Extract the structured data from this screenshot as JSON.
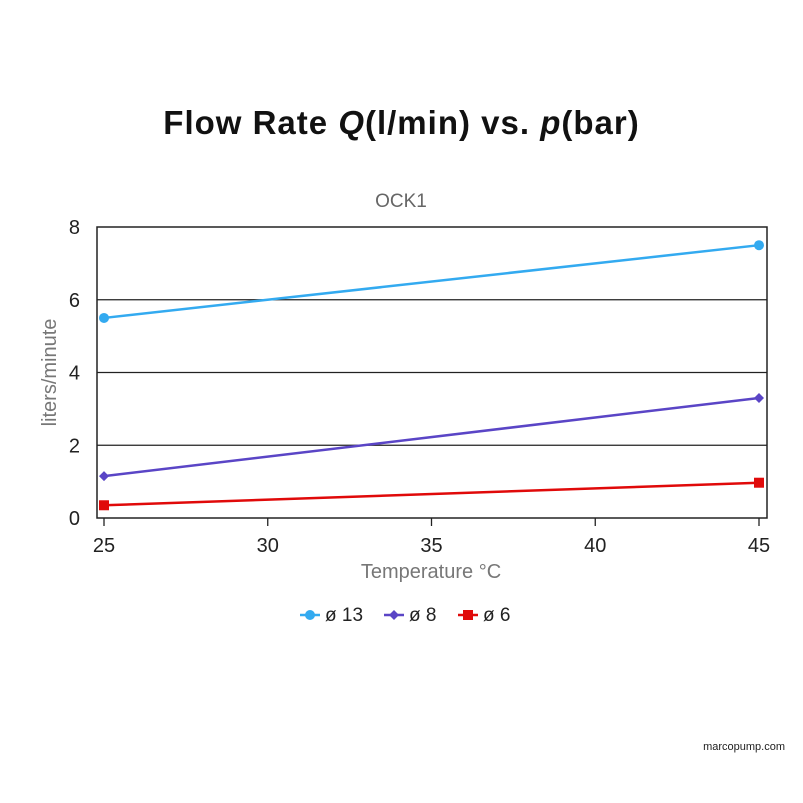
{
  "chart_data": {
    "type": "line",
    "title_parts": [
      "Flow Rate ",
      "Q",
      "(l/min) vs. ",
      "p",
      "(bar)"
    ],
    "subtitle": "OCK1",
    "xlabel": "Temperature °C",
    "ylabel": "liters/minute",
    "xlim": [
      25,
      45
    ],
    "ylim": [
      0,
      8
    ],
    "xticks": [
      25,
      30,
      35,
      40,
      45
    ],
    "yticks": [
      0,
      2,
      4,
      6,
      8
    ],
    "grid": "horizontal",
    "legend_position": "bottom",
    "series": [
      {
        "name": "ø 13",
        "x": [
          25,
          45
        ],
        "y": [
          5.5,
          7.5
        ],
        "color": "#33aaf0",
        "marker": "circle"
      },
      {
        "name": "ø 8",
        "x": [
          25,
          45
        ],
        "y": [
          1.15,
          3.3
        ],
        "color": "#5a45c6",
        "marker": "diamond"
      },
      {
        "name": "ø 6",
        "x": [
          25,
          45
        ],
        "y": [
          0.35,
          0.97
        ],
        "color": "#e00a0a",
        "marker": "square"
      }
    ]
  },
  "credit": "marcopump.com"
}
